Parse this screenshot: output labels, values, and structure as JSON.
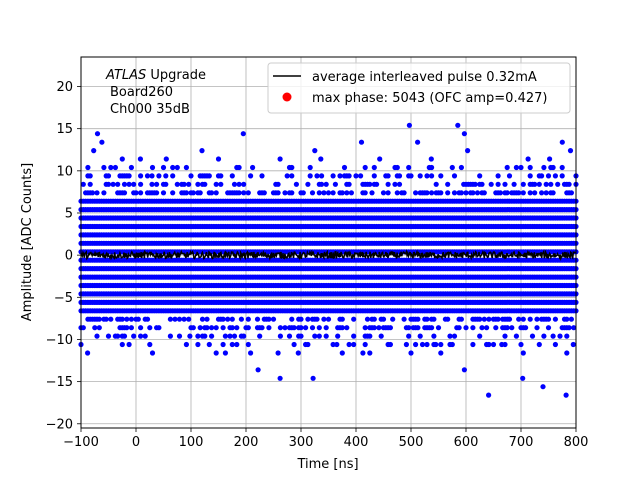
{
  "chart_data": {
    "type": "scatter",
    "title": "",
    "xlabel": "Time [ns]",
    "ylabel": "Amplitude [ADC Counts]",
    "xlim": [
      -100,
      800
    ],
    "ylim": [
      -20.5,
      23.5
    ],
    "xticks": [
      -100,
      0,
      100,
      200,
      300,
      400,
      500,
      600,
      700,
      800
    ],
    "xtick_labels": [
      "−100",
      "0",
      "100",
      "200",
      "300",
      "400",
      "500",
      "600",
      "700",
      "800"
    ],
    "yticks": [
      -20,
      -15,
      -10,
      -5,
      0,
      5,
      10,
      15,
      20
    ],
    "ytick_labels": [
      "−20",
      "−15",
      "−10",
      "−5",
      "0",
      "5",
      "10",
      "15",
      "20"
    ],
    "grid": true,
    "legend_placement": "top-right",
    "annotation": {
      "experiment_italic": "ATLAS",
      "experiment_rest": " Upgrade",
      "board": "Board260",
      "channel": "Ch000 35dB"
    },
    "series": [
      {
        "name": "average interleaved pulse 0.32mA",
        "kind": "line",
        "color": "#000000",
        "baseline": 0,
        "noise_amplitude": 0.4,
        "x_range": [
          -100,
          800
        ]
      },
      {
        "name": "max phase: 5043 (OFC amp=0.427)",
        "kind": "marker",
        "color": "#ff0000",
        "legend_only": true
      },
      {
        "name": "",
        "kind": "scatter",
        "color": "#0000ff",
        "quantized_levels": [
          -16.6,
          -15.6,
          -14.6,
          -13.6,
          -12.6,
          -11.6,
          -10.6,
          -9.6,
          -8.6,
          -7.6,
          -6.6,
          -5.6,
          -4.6,
          -3.6,
          -2.6,
          -1.6,
          -0.6,
          0.4,
          1.4,
          2.4,
          3.4,
          4.4,
          5.4,
          6.4,
          7.4,
          8.4,
          9.4,
          10.4,
          11.4,
          12.4,
          13.4,
          14.4,
          15.4
        ],
        "dense_band": [
          -6.6,
          6.4
        ],
        "x_range": [
          -100,
          800
        ],
        "outliers": [
          {
            "x": -77,
            "y": 12.4
          },
          {
            "x": -70,
            "y": 14.4
          },
          {
            "x": -62,
            "y": 13.4
          },
          {
            "x": -50,
            "y": 9.4
          },
          {
            "x": -25,
            "y": 11.4
          },
          {
            "x": 8,
            "y": 11.4
          },
          {
            "x": 30,
            "y": 10.4
          },
          {
            "x": 55,
            "y": 11.4
          },
          {
            "x": 120,
            "y": 12.4
          },
          {
            "x": 150,
            "y": 11.4
          },
          {
            "x": 195,
            "y": 14.4
          },
          {
            "x": 212,
            "y": 10.4
          },
          {
            "x": 262,
            "y": 11.4
          },
          {
            "x": 325,
            "y": 12.4
          },
          {
            "x": 336,
            "y": 11.4
          },
          {
            "x": 410,
            "y": 13.4
          },
          {
            "x": 443,
            "y": 11.4
          },
          {
            "x": 497,
            "y": 15.4
          },
          {
            "x": 512,
            "y": 13.4
          },
          {
            "x": 537,
            "y": 11.4
          },
          {
            "x": 585,
            "y": 15.4
          },
          {
            "x": 597,
            "y": 14.4
          },
          {
            "x": 603,
            "y": 12.4
          },
          {
            "x": 713,
            "y": 11.4
          },
          {
            "x": 752,
            "y": 11.4
          },
          {
            "x": 775,
            "y": 13.4
          },
          {
            "x": 790,
            "y": 12.4
          },
          {
            "x": -88,
            "y": -11.6
          },
          {
            "x": 30,
            "y": -11.6
          },
          {
            "x": 98,
            "y": -9.6
          },
          {
            "x": 175,
            "y": -10.6
          },
          {
            "x": 222,
            "y": -13.6
          },
          {
            "x": 262,
            "y": -14.6
          },
          {
            "x": 295,
            "y": -11.6
          },
          {
            "x": 322,
            "y": -14.6
          },
          {
            "x": 365,
            "y": -10.6
          },
          {
            "x": 425,
            "y": -11.6
          },
          {
            "x": 500,
            "y": -11.6
          },
          {
            "x": 545,
            "y": -10.6
          },
          {
            "x": 597,
            "y": -13.6
          },
          {
            "x": 641,
            "y": -16.6
          },
          {
            "x": 665,
            "y": -10.6
          },
          {
            "x": 703,
            "y": -14.6
          },
          {
            "x": 740,
            "y": -15.6
          },
          {
            "x": 782,
            "y": -16.6
          },
          {
            "x": 795,
            "y": -10.6
          }
        ]
      }
    ]
  }
}
